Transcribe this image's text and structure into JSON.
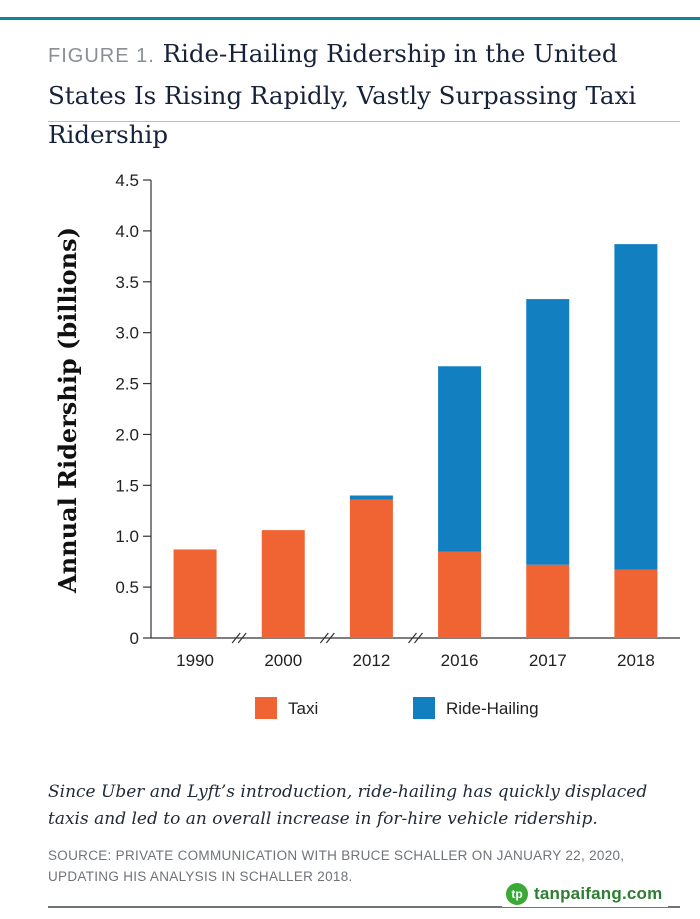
{
  "header": {
    "figure_label": "FIGURE 1.",
    "title": "Ride-Hailing Ridership in the United States Is Rising Rapidly, Vastly Surpassing Taxi Ridership"
  },
  "colors": {
    "taxi": "#f06433",
    "ride_hailing": "#127fc1",
    "accent": "#16839c"
  },
  "chart_data": {
    "type": "bar",
    "stacked": true,
    "categories": [
      "1990",
      "2000",
      "2012",
      "2016",
      "2017",
      "2018"
    ],
    "series": [
      {
        "name": "Taxi",
        "values": [
          0.87,
          1.06,
          1.36,
          0.85,
          0.72,
          0.67
        ]
      },
      {
        "name": "Ride-Hailing",
        "values": [
          0,
          0,
          0.04,
          1.82,
          2.61,
          3.2
        ]
      }
    ],
    "ylabel": "Annual Ridership (billions)",
    "xlabel": "",
    "ylim": [
      0,
      4.5
    ],
    "yticks": [
      0,
      0.5,
      1.0,
      1.5,
      2.0,
      2.5,
      3.0,
      3.5,
      4.0,
      4.5
    ],
    "ytick_labels": [
      "0",
      "0.5",
      "1.0",
      "1.5",
      "2.0",
      "2.5",
      "3.0",
      "3.5",
      "4.0",
      "4.5"
    ],
    "axis_breaks_after": [
      "1990",
      "2000",
      "2012"
    ],
    "legend_position": "bottom",
    "grid": false
  },
  "caption": "Since Uber and Lyft’s introduction, ride-hailing has quickly displaced taxis and led to an overall increase in for-hire vehicle ridership.",
  "source": "SOURCE: PRIVATE COMMUNICATION WITH BRUCE SCHALLER ON JANUARY 22, 2020, UPDATING HIS ANALYSIS IN SCHALLER 2018.",
  "watermark": {
    "logo_text": "tp",
    "text": "tanpaifang.com"
  }
}
